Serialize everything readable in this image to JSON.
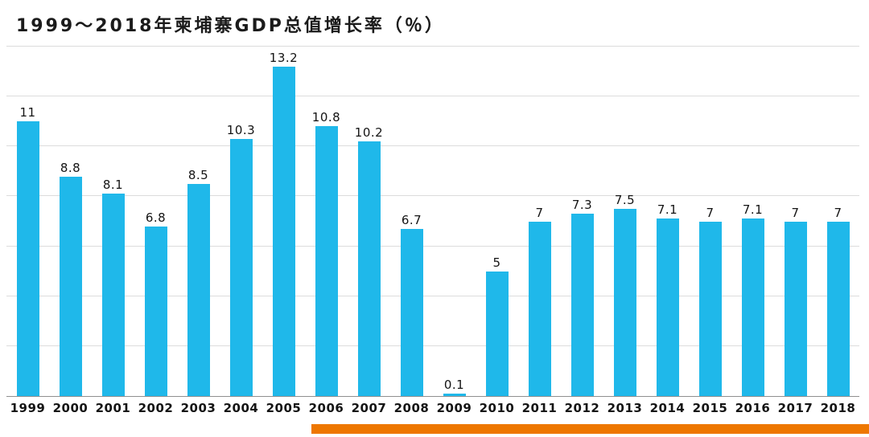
{
  "title": "1999～2018年柬埔寨GDP总值增长率（％）",
  "colors": {
    "bar": "#1fb8ea",
    "accent_underline": "#ee7700",
    "gridline": "#dcdcdc",
    "baseline": "#8f8f8f",
    "label": "#141414"
  },
  "chart_data": {
    "type": "bar",
    "title": "1999～2018年柬埔寨GDP总值增长率（％）",
    "categories": [
      "1999",
      "2000",
      "2001",
      "2002",
      "2003",
      "2004",
      "2005",
      "2006",
      "2007",
      "2008",
      "2009",
      "2010",
      "2011",
      "2012",
      "2013",
      "2014",
      "2015",
      "2016",
      "2017",
      "2018"
    ],
    "values": [
      11,
      8.8,
      8.1,
      6.8,
      8.5,
      10.3,
      13.2,
      10.8,
      10.2,
      6.7,
      0.1,
      5,
      7,
      7.3,
      7.5,
      7.1,
      7,
      7.1,
      7,
      7
    ],
    "value_labels": [
      "11",
      "8.8",
      "8.1",
      "6.8",
      "8.5",
      "10.3",
      "13.2",
      "10.8",
      "10.2",
      "6.7",
      "0.1",
      "5",
      "7",
      "7.3",
      "7.5",
      "7.1",
      "7",
      "7.1",
      "7",
      "7"
    ],
    "xlabel": "",
    "ylabel": "",
    "ylim": [
      0,
      14
    ],
    "grid": true,
    "gridline_step": 2,
    "legend": "none",
    "value_labels_shown": true
  }
}
